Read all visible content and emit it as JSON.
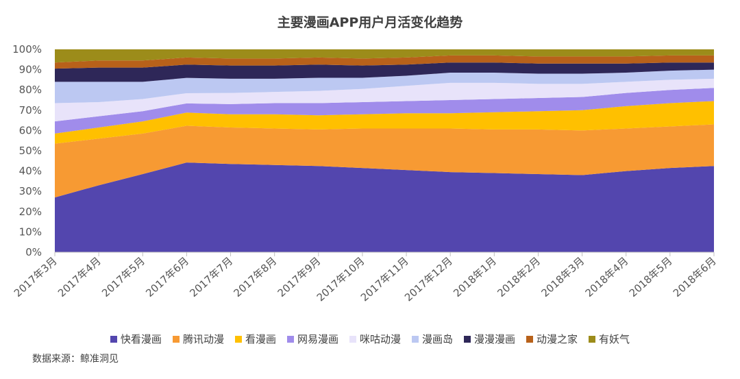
{
  "chart_data": {
    "type": "area",
    "stacked": true,
    "title": "主要漫画APP用户月活变化趋势",
    "x": [
      "2017年3月",
      "2017年4月",
      "2017年5月",
      "2017年6月",
      "2017年7月",
      "2017年8月",
      "2017年9月",
      "2017年10月",
      "2017年11月",
      "2017年12月",
      "2018年1月",
      "2018年2月",
      "2018年3月",
      "2018年4月",
      "2018年5月",
      "2018年6月"
    ],
    "ylim": [
      0,
      100
    ],
    "yticks": [
      "0%",
      "10%",
      "20%",
      "30%",
      "40%",
      "50%",
      "60%",
      "70%",
      "80%",
      "90%",
      "100%"
    ],
    "grid": false,
    "legend_position": "bottom",
    "series": [
      {
        "name": "快看漫画",
        "color": "#5346AE",
        "values": [
          27,
          33,
          38.5,
          44,
          43.5,
          43,
          42.5,
          41.5,
          40.5,
          39.5,
          39,
          38.5,
          38,
          40,
          41.5,
          42.5
        ]
      },
      {
        "name": "腾讯动漫",
        "color": "#F79A33",
        "values": [
          26.5,
          23,
          20,
          18,
          18,
          18,
          18,
          19.5,
          20.5,
          21.5,
          21.5,
          22,
          22,
          21,
          20.5,
          20.5
        ]
      },
      {
        "name": "看漫画",
        "color": "#FFC000",
        "values": [
          5,
          5.5,
          6,
          6.5,
          6.5,
          7,
          7,
          7,
          7.5,
          7.5,
          8.5,
          9,
          10,
          11,
          11.5,
          11.5
        ]
      },
      {
        "name": "网易漫画",
        "color": "#A08CEB",
        "values": [
          6,
          5.5,
          5,
          4.5,
          5,
          5.5,
          6,
          6,
          6,
          6.5,
          6.5,
          6.5,
          6.5,
          6.5,
          6.5,
          6.5
        ]
      },
      {
        "name": "咪咕动漫",
        "color": "#E8E3FA",
        "values": [
          9,
          7,
          6,
          5,
          5.5,
          5.5,
          6,
          6.5,
          7.5,
          8.5,
          8,
          7,
          6.5,
          5.5,
          5,
          4.5
        ]
      },
      {
        "name": "漫画岛",
        "color": "#BCC8F2",
        "values": [
          10.5,
          10,
          8.5,
          7.5,
          7,
          6.5,
          6.5,
          5.5,
          5,
          5,
          5,
          5,
          5,
          4.5,
          4.5,
          4.5
        ]
      },
      {
        "name": "漫漫漫画",
        "color": "#2E2758",
        "values": [
          6.5,
          7,
          7,
          6.5,
          6.5,
          6.5,
          6.5,
          6,
          5.5,
          5,
          5,
          5,
          5,
          4.5,
          4,
          3.5
        ]
      },
      {
        "name": "动漫之家",
        "color": "#B8611A",
        "values": [
          3,
          3.5,
          3.5,
          3.5,
          3.5,
          3.5,
          3.5,
          3.5,
          3.5,
          3.5,
          3.5,
          3.5,
          3.5,
          3.5,
          3.5,
          3.5
        ]
      },
      {
        "name": "有妖气",
        "color": "#9C8C1A",
        "values": [
          6.5,
          5.5,
          5.5,
          4,
          4.5,
          4.5,
          4,
          4.5,
          4,
          3,
          3,
          3.5,
          3.5,
          3.5,
          3,
          3
        ]
      }
    ],
    "source": "数据来源：鲸准洞见"
  }
}
